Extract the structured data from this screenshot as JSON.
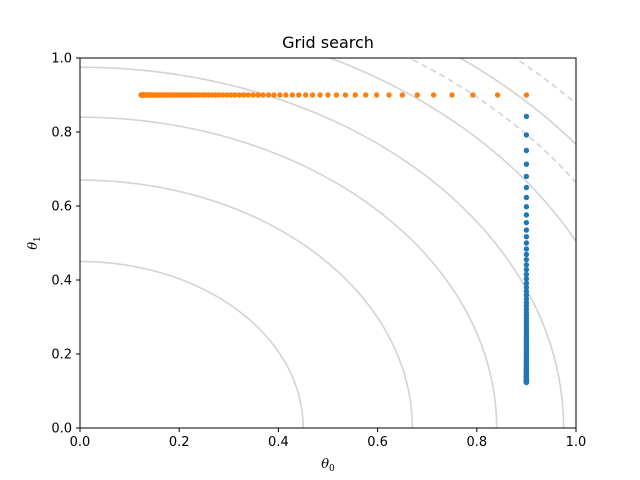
{
  "chart_data": {
    "type": "scatter",
    "title": "Grid search",
    "xlabel": {
      "main": "θ",
      "sub": "0"
    },
    "ylabel": {
      "main": "θ",
      "sub": "1"
    },
    "xlim": [
      0,
      1
    ],
    "ylim": [
      0,
      1
    ],
    "xticks": [
      "0.0",
      "0.2",
      "0.4",
      "0.6",
      "0.8",
      "1.0"
    ],
    "yticks": [
      "0.0",
      "0.2",
      "0.4",
      "0.6",
      "0.8",
      "1.0"
    ],
    "grid": false,
    "legend": "none",
    "contours": [
      {
        "level": 0.45,
        "style": "solid"
      },
      {
        "level": 0.67,
        "style": "solid"
      },
      {
        "level": 0.84,
        "style": "solid"
      },
      {
        "level": 0.975,
        "style": "solid"
      },
      {
        "level": 1.12,
        "style": "solid"
      },
      {
        "level": 1.26,
        "style": "solid"
      },
      {
        "level": 1.2,
        "style": "dashed"
      },
      {
        "level": 1.33,
        "style": "dashed"
      }
    ],
    "series": [
      {
        "color": "#1f77b4",
        "x": [
          0.9,
          0.9,
          0.9,
          0.9,
          0.9,
          0.9,
          0.9,
          0.9,
          0.9,
          0.9,
          0.9,
          0.9,
          0.9,
          0.9,
          0.9,
          0.9,
          0.9,
          0.9,
          0.9,
          0.9,
          0.9,
          0.9,
          0.9,
          0.9,
          0.9,
          0.9,
          0.9,
          0.9,
          0.9,
          0.9,
          0.9,
          0.9,
          0.9,
          0.9,
          0.9,
          0.9,
          0.9,
          0.9,
          0.9,
          0.9,
          0.9,
          0.9,
          0.9,
          0.9,
          0.9,
          0.9,
          0.9,
          0.9,
          0.9,
          0.9,
          0.9,
          0.9,
          0.9,
          0.9,
          0.9,
          0.9,
          0.9,
          0.9,
          0.9,
          0.9,
          0.9,
          0.9,
          0.9,
          0.9,
          0.9,
          0.9,
          0.9,
          0.9,
          0.9,
          0.9,
          0.9,
          0.9,
          0.9,
          0.9,
          0.9,
          0.9,
          0.9,
          0.9,
          0.9,
          0.9
        ],
        "y": [
          0.842,
          0.792,
          0.75,
          0.713,
          0.68,
          0.65,
          0.623,
          0.598,
          0.576,
          0.555,
          0.535,
          0.517,
          0.5,
          0.484,
          0.469,
          0.455,
          0.441,
          0.428,
          0.415,
          0.403,
          0.391,
          0.38,
          0.369,
          0.359,
          0.349,
          0.339,
          0.33,
          0.321,
          0.312,
          0.304,
          0.296,
          0.288,
          0.28,
          0.273,
          0.266,
          0.259,
          0.252,
          0.246,
          0.24,
          0.234,
          0.228,
          0.222,
          0.217,
          0.212,
          0.207,
          0.202,
          0.197,
          0.193,
          0.189,
          0.185,
          0.181,
          0.177,
          0.173,
          0.17,
          0.166,
          0.163,
          0.16,
          0.157,
          0.154,
          0.151,
          0.149,
          0.146,
          0.144,
          0.142,
          0.14,
          0.138,
          0.136,
          0.134,
          0.132,
          0.131,
          0.13,
          0.129,
          0.128,
          0.127,
          0.126,
          0.125,
          0.125,
          0.124,
          0.124,
          0.123
        ]
      },
      {
        "color": "#ff7f0e",
        "x": [
          0.9,
          0.842,
          0.792,
          0.75,
          0.713,
          0.68,
          0.65,
          0.623,
          0.598,
          0.576,
          0.555,
          0.535,
          0.517,
          0.5,
          0.484,
          0.469,
          0.455,
          0.441,
          0.428,
          0.415,
          0.403,
          0.391,
          0.38,
          0.369,
          0.359,
          0.349,
          0.339,
          0.33,
          0.321,
          0.312,
          0.304,
          0.296,
          0.288,
          0.28,
          0.273,
          0.266,
          0.259,
          0.252,
          0.246,
          0.24,
          0.234,
          0.228,
          0.222,
          0.217,
          0.212,
          0.207,
          0.202,
          0.197,
          0.193,
          0.189,
          0.185,
          0.181,
          0.177,
          0.173,
          0.17,
          0.166,
          0.163,
          0.16,
          0.157,
          0.154,
          0.151,
          0.149,
          0.146,
          0.144,
          0.142,
          0.14,
          0.138,
          0.136,
          0.134,
          0.132,
          0.131,
          0.13,
          0.129,
          0.128,
          0.127,
          0.126,
          0.125,
          0.125,
          0.124,
          0.124,
          0.123
        ],
        "y": [
          0.9,
          0.9,
          0.9,
          0.9,
          0.9,
          0.9,
          0.9,
          0.9,
          0.9,
          0.9,
          0.9,
          0.9,
          0.9,
          0.9,
          0.9,
          0.9,
          0.9,
          0.9,
          0.9,
          0.9,
          0.9,
          0.9,
          0.9,
          0.9,
          0.9,
          0.9,
          0.9,
          0.9,
          0.9,
          0.9,
          0.9,
          0.9,
          0.9,
          0.9,
          0.9,
          0.9,
          0.9,
          0.9,
          0.9,
          0.9,
          0.9,
          0.9,
          0.9,
          0.9,
          0.9,
          0.9,
          0.9,
          0.9,
          0.9,
          0.9,
          0.9,
          0.9,
          0.9,
          0.9,
          0.9,
          0.9,
          0.9,
          0.9,
          0.9,
          0.9,
          0.9,
          0.9,
          0.9,
          0.9,
          0.9,
          0.9,
          0.9,
          0.9,
          0.9,
          0.9,
          0.9,
          0.9,
          0.9,
          0.9,
          0.9,
          0.9,
          0.9,
          0.9,
          0.9,
          0.9,
          0.9
        ]
      }
    ],
    "contour_color": "#d3d3d3"
  }
}
